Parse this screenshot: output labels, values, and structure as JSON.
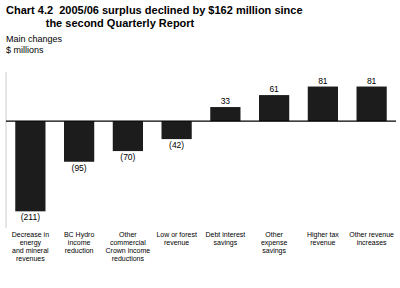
{
  "chart_data": {
    "type": "bar",
    "title": "Chart 4.2  2005/06 surplus declined by $162 million since\n             the second Quarterly Report",
    "subtitle": "Main changes",
    "ylabel": "$ millions",
    "categories": [
      "Decrease in energy\nand mineral\nrevenues",
      "BC Hydro income\nreduction",
      "Other commercial\nCrown income\nreductions",
      "Low or forest\nrevenue",
      "Debt interest\nsavings",
      "Other expense\nsavings",
      "Higher tax revenue",
      "Other revenue\nincreases"
    ],
    "values": [
      -211,
      -95,
      -70,
      -42,
      33,
      61,
      81,
      81
    ],
    "value_labels": [
      "(211)",
      "(95)",
      "(70)",
      "(42)",
      "33",
      "61",
      "81",
      "81"
    ],
    "color": "#1c1c1c",
    "ylim": [
      -250,
      115
    ],
    "data_labels": true,
    "tick_labels": "x",
    "grid": false
  }
}
